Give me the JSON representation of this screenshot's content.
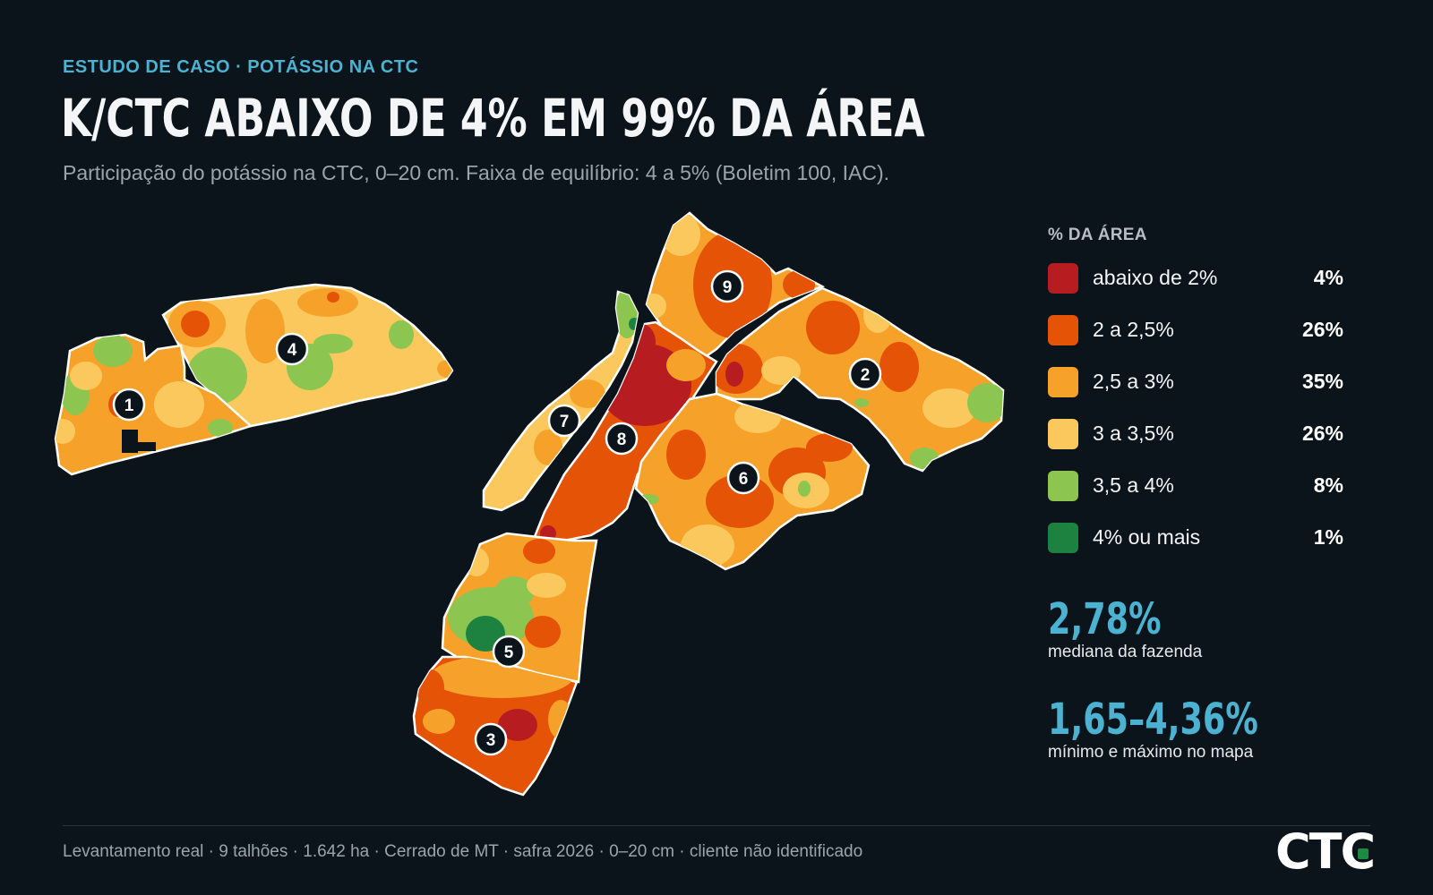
{
  "header": {
    "eyebrow": "ESTUDO DE CASO · POTÁSSIO NA CTC",
    "title": "K/CTC ABAIXO DE 4% EM 99% DA ÁREA",
    "subtitle": "Participação do potássio na CTC, 0–20 cm. Faixa de equilíbrio: 4 a 5% (Boletim 100, IAC)."
  },
  "legend": {
    "heading": "% DA ÁREA",
    "items": [
      {
        "label": "abaixo de 2%",
        "pct": "4%",
        "color": "#b71d20"
      },
      {
        "label": "2 a 2,5%",
        "pct": "26%",
        "color": "#e55307"
      },
      {
        "label": "2,5 a 3%",
        "pct": "35%",
        "color": "#f6a22a"
      },
      {
        "label": "3 a 3,5%",
        "pct": "26%",
        "color": "#fbc85d"
      },
      {
        "label": "3,5 a 4%",
        "pct": "8%",
        "color": "#8cc54f"
      },
      {
        "label": "4% ou mais",
        "pct": "1%",
        "color": "#1d8240"
      }
    ]
  },
  "stats": [
    {
      "value": "2,78%",
      "caption": "mediana da fazenda"
    },
    {
      "value": "1,65–4,36%",
      "caption": "mínimo e máximo no mapa"
    }
  ],
  "map": {
    "fields": [
      {
        "id": "1",
        "base_class": "2,5 a 3%"
      },
      {
        "id": "2",
        "base_class": "2,5 a 3%"
      },
      {
        "id": "3",
        "base_class": "2 a 2,5%"
      },
      {
        "id": "4",
        "base_class": "3 a 3,5%"
      },
      {
        "id": "5",
        "base_class": "2,5 a 3%"
      },
      {
        "id": "6",
        "base_class": "2,5 a 3%"
      },
      {
        "id": "7",
        "base_class": "3 a 3,5%"
      },
      {
        "id": "8",
        "base_class": "2 a 2,5%"
      },
      {
        "id": "9",
        "base_class": "2,5 a 3%"
      }
    ]
  },
  "footer": {
    "text": "Levantamento real · 9 talhões · 1.642 ha · Cerrado de MT · safra 2026 · 0–20 cm · cliente não identificado"
  },
  "logo": {
    "text": "CTC",
    "accent_color": "#1b8a43"
  }
}
